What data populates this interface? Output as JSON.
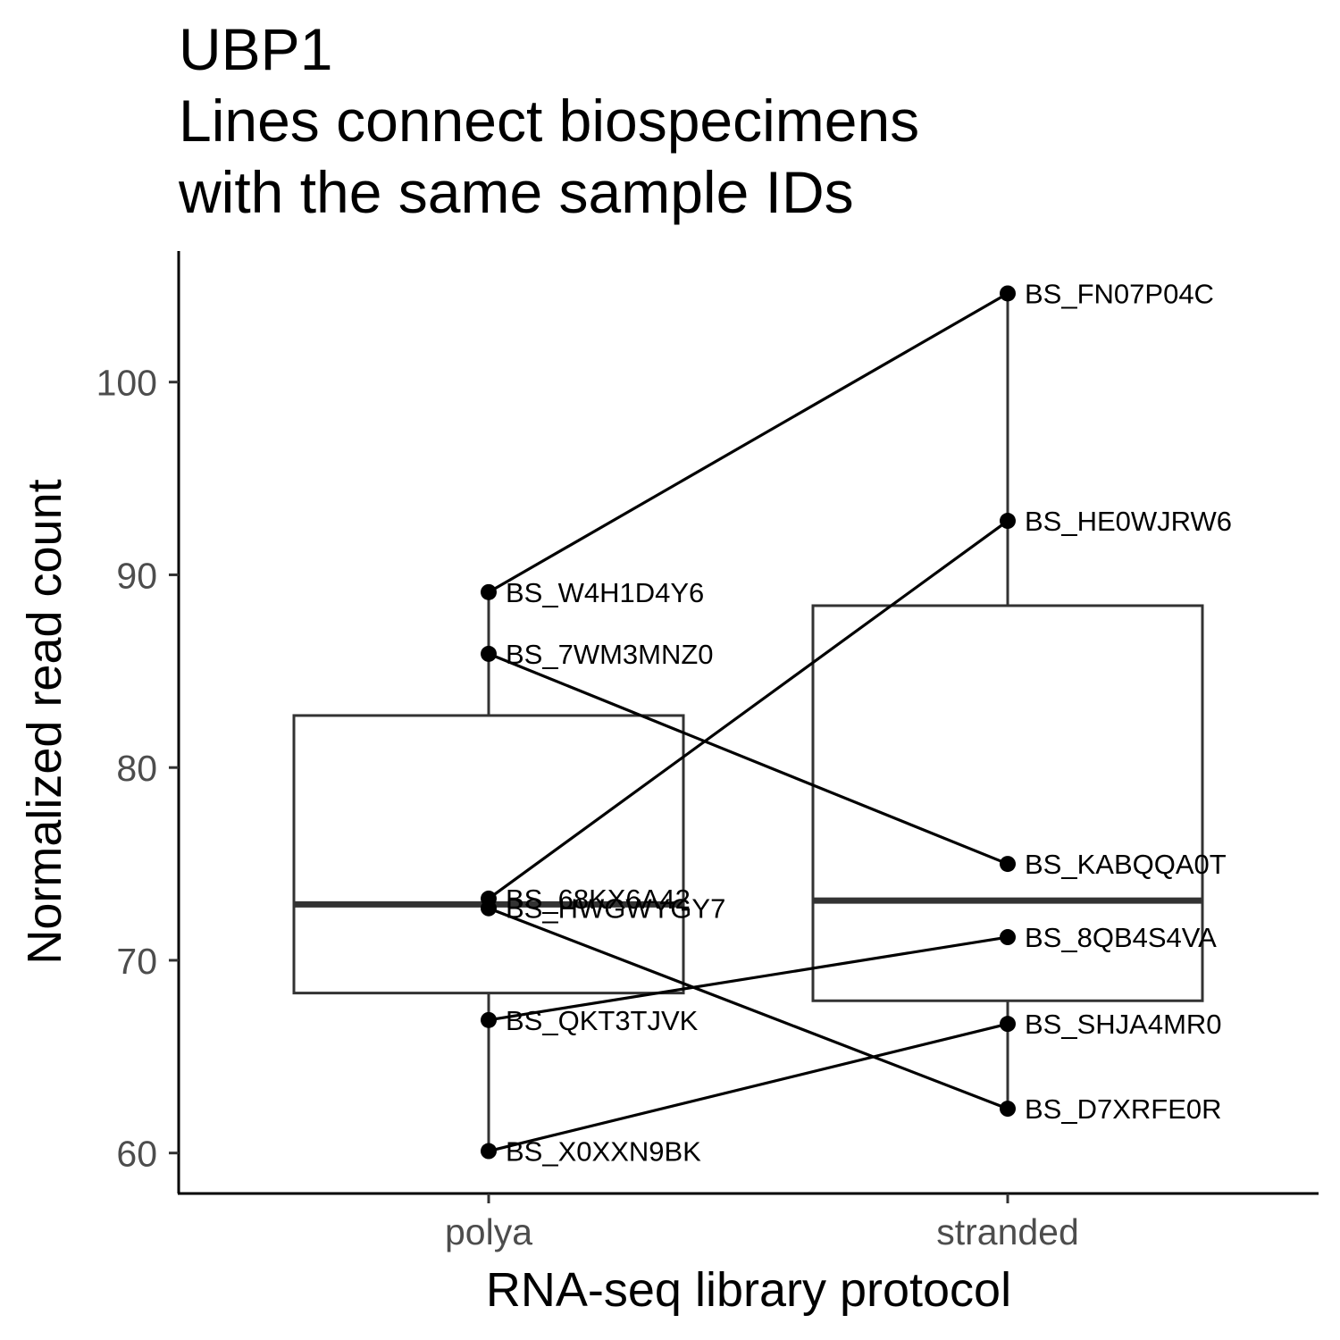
{
  "chart_data": {
    "type": "boxplot",
    "title_lines": [
      "UBP1",
      "Lines connect biospecimens",
      "with the same sample IDs"
    ],
    "xlabel": "RNA-seq library protocol",
    "ylabel": "Normalized read count",
    "categories": [
      "polya",
      "stranded"
    ],
    "ylim": [
      57.9,
      106.8
    ],
    "yticks": [
      {
        "value": 60,
        "label": "60"
      },
      {
        "value": 70,
        "label": "70"
      },
      {
        "value": 80,
        "label": "80"
      },
      {
        "value": 90,
        "label": "90"
      },
      {
        "value": 100,
        "label": "100"
      }
    ],
    "boxes": [
      {
        "category": "polya",
        "whisker_low": 60.1,
        "q1": 68.3,
        "median": 72.9,
        "q3": 82.7,
        "whisker_high": 89.1
      },
      {
        "category": "stranded",
        "whisker_low": 62.3,
        "q1": 67.9,
        "median": 73.1,
        "q3": 88.4,
        "whisker_high": 104.6
      }
    ],
    "points": {
      "polya": [
        {
          "id": "BS_W4H1D4Y6",
          "value": 89.1
        },
        {
          "id": "BS_7WM3MNZ0",
          "value": 85.9
        },
        {
          "id": "BS_68KX6A42",
          "value": 73.2
        },
        {
          "id": "BS_HWGWYGY7",
          "value": 72.7
        },
        {
          "id": "BS_QKT3TJVK",
          "value": 66.9
        },
        {
          "id": "BS_X0XXN9BK",
          "value": 60.1
        }
      ],
      "stranded": [
        {
          "id": "BS_FN07P04C",
          "value": 104.6
        },
        {
          "id": "BS_HE0WJRW6",
          "value": 92.8
        },
        {
          "id": "BS_KABQQA0T",
          "value": 75.0
        },
        {
          "id": "BS_8QB4S4VA",
          "value": 71.2
        },
        {
          "id": "BS_SHJA4MR0",
          "value": 66.7
        },
        {
          "id": "BS_D7XRFE0R",
          "value": 62.3
        }
      ]
    },
    "connections": [
      {
        "from": "BS_W4H1D4Y6",
        "to": "BS_FN07P04C"
      },
      {
        "from": "BS_7WM3MNZ0",
        "to": "BS_KABQQA0T"
      },
      {
        "from": "BS_68KX6A42",
        "to": "BS_HE0WJRW6"
      },
      {
        "from": "BS_HWGWYGY7",
        "to": "BS_D7XRFE0R"
      },
      {
        "from": "BS_QKT3TJVK",
        "to": "BS_8QB4S4VA"
      },
      {
        "from": "BS_X0XXN9BK",
        "to": "BS_SHJA4MR0"
      }
    ],
    "colors": {
      "box": "#333333",
      "point": "#000000",
      "line": "#000000",
      "tick_text": "#4d4d4d"
    }
  }
}
